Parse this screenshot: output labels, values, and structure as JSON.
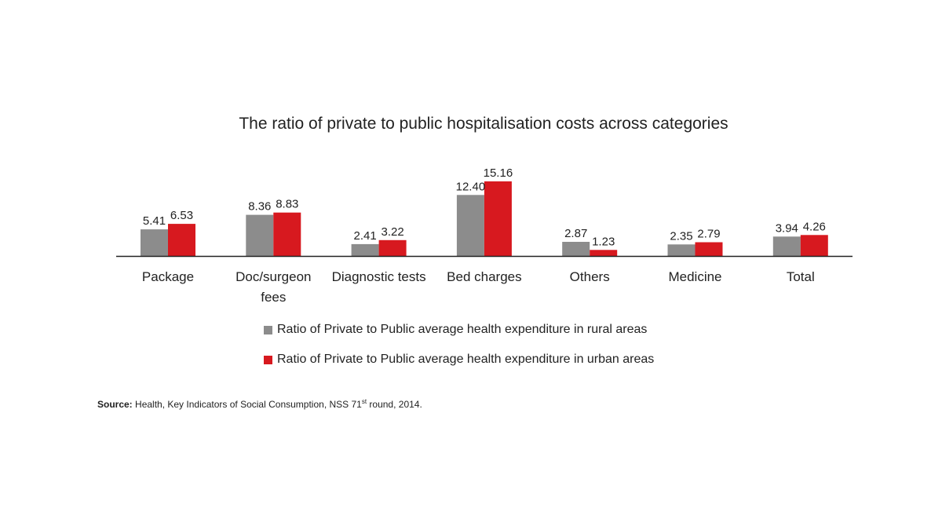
{
  "chart_data": {
    "type": "bar",
    "title": "The ratio of private to public hospitalisation costs across categories",
    "categories": [
      "Package",
      "Doc/surgeon fees",
      "Diagnostic tests",
      "Bed charges",
      "Others",
      "Medicine",
      "Total"
    ],
    "category_lines": [
      [
        "Package"
      ],
      [
        "Doc/surgeon",
        "fees"
      ],
      [
        "Diagnostic tests"
      ],
      [
        "Bed charges"
      ],
      [
        "Others"
      ],
      [
        "Medicine"
      ],
      [
        "Total"
      ]
    ],
    "series": [
      {
        "name": "Ratio of Private to Public average health expenditure in rural areas",
        "color": "#8c8c8c",
        "values": [
          5.41,
          8.36,
          2.41,
          12.4,
          2.87,
          2.35,
          3.94
        ],
        "labels": [
          "5.41",
          "8.36",
          "2.41",
          "12.40",
          "2.87",
          "2.35",
          "3.94"
        ]
      },
      {
        "name": "Ratio of Private to Public average health expenditure in urban areas",
        "color": "#d7191f",
        "values": [
          6.53,
          8.83,
          3.22,
          15.16,
          1.23,
          2.79,
          4.26
        ],
        "labels": [
          "6.53",
          "8.83",
          "3.22",
          "15.16",
          "1.23",
          "2.79",
          "4.26"
        ]
      }
    ],
    "ylim": [
      0,
      15.16
    ],
    "grid": false,
    "legend_position": "bottom"
  },
  "source": {
    "label": "Source:",
    "text_before": " Health, Key Indicators of Social Consumption, NSS 71",
    "superscript": "st",
    "text_after": " round, 2014."
  }
}
